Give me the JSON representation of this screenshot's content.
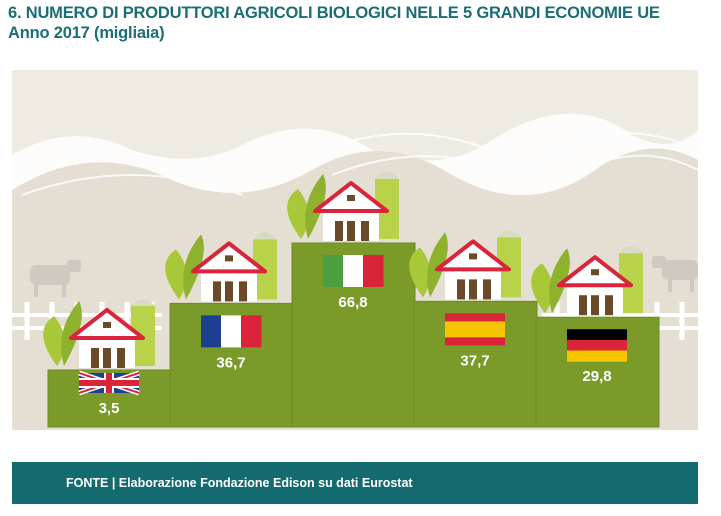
{
  "title": "6. NUMERO DI PRODUTTORI AGRICOLI BIOLOGICI NELLE 5 GRANDI ECONOMIE UE",
  "subtitle": "Anno 2017 (migliaia)",
  "source": "FONTE | Elaborazione Fondazione Edison su dati Eurostat",
  "colors": {
    "title": "#1a6e74",
    "bar": "#7a9a2a",
    "background": "#efebe3",
    "footer": "#146b6f",
    "roof": "#d9243a"
  },
  "chart_data": {
    "type": "bar",
    "categories": [
      "United Kingdom",
      "France",
      "Italy",
      "Spain",
      "Germany"
    ],
    "icons": [
      "uk-flag-icon",
      "france-flag-icon",
      "italy-flag-icon",
      "spain-flag-icon",
      "germany-flag-icon"
    ],
    "values": [
      3.5,
      36.7,
      66.8,
      37.7,
      29.8
    ],
    "value_labels": [
      "3,5",
      "36,7",
      "66,8",
      "37,7",
      "29,8"
    ]
  }
}
